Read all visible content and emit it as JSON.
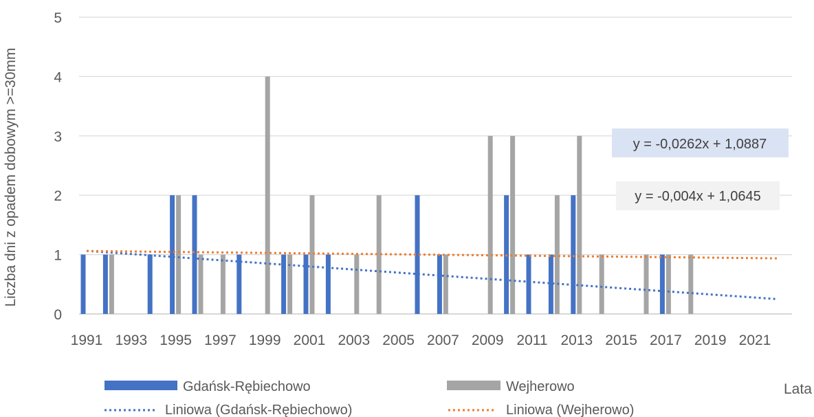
{
  "chart_data": {
    "type": "bar",
    "xlabel": "Lata",
    "ylabel": "Liczba dni z opadem dobowym >=30mm",
    "ylim": [
      0,
      5
    ],
    "yticks": [
      "0",
      "1",
      "2",
      "3",
      "4",
      "5"
    ],
    "xlim": [
      1991,
      2022
    ],
    "xticks": [
      "1991",
      "1993",
      "1995",
      "1997",
      "1999",
      "2001",
      "2003",
      "2005",
      "2007",
      "2009",
      "2011",
      "2013",
      "2015",
      "2017",
      "2019",
      "2021"
    ],
    "grid": "horizontal",
    "legend_position": "bottom",
    "series": [
      {
        "name": "Gdańsk-Rębiechowo",
        "color": "#4472C4",
        "points": [
          {
            "year": 1991,
            "value": 1
          },
          {
            "year": 1992,
            "value": 1
          },
          {
            "year": 1994,
            "value": 1
          },
          {
            "year": 1995,
            "value": 2
          },
          {
            "year": 1996,
            "value": 2
          },
          {
            "year": 1998,
            "value": 1
          },
          {
            "year": 2000,
            "value": 1
          },
          {
            "year": 2001,
            "value": 1
          },
          {
            "year": 2002,
            "value": 1
          },
          {
            "year": 2006,
            "value": 2
          },
          {
            "year": 2007,
            "value": 1
          },
          {
            "year": 2010,
            "value": 2
          },
          {
            "year": 2011,
            "value": 1
          },
          {
            "year": 2012,
            "value": 1
          },
          {
            "year": 2013,
            "value": 2
          },
          {
            "year": 2017,
            "value": 1
          }
        ]
      },
      {
        "name": "Wejherowo",
        "color": "#A5A5A5",
        "points": [
          {
            "year": 1992,
            "value": 1
          },
          {
            "year": 1995,
            "value": 2
          },
          {
            "year": 1996,
            "value": 1
          },
          {
            "year": 1997,
            "value": 1
          },
          {
            "year": 1999,
            "value": 4
          },
          {
            "year": 2000,
            "value": 1
          },
          {
            "year": 2001,
            "value": 2
          },
          {
            "year": 2003,
            "value": 1
          },
          {
            "year": 2004,
            "value": 2
          },
          {
            "year": 2007,
            "value": 1
          },
          {
            "year": 2009,
            "value": 3
          },
          {
            "year": 2010,
            "value": 3
          },
          {
            "year": 2012,
            "value": 2
          },
          {
            "year": 2013,
            "value": 3
          },
          {
            "year": 2014,
            "value": 1
          },
          {
            "year": 2016,
            "value": 1
          },
          {
            "year": 2017,
            "value": 1
          },
          {
            "year": 2018,
            "value": 1
          }
        ]
      }
    ],
    "trendlines": [
      {
        "name": "Liniowa (Gdańsk-Rębiechowo)",
        "color": "#4472C4",
        "equation": "y = -0,0262x + 1,0887",
        "slope": -0.0262,
        "intercept": 1.0887,
        "label_background": "#DAE3F3"
      },
      {
        "name": "Liniowa (Wejherowo)",
        "color": "#ED7D31",
        "equation": "y = -0,004x + 1,0645",
        "slope": -0.004,
        "intercept": 1.0645,
        "label_background": "#F2F2F2"
      }
    ]
  }
}
